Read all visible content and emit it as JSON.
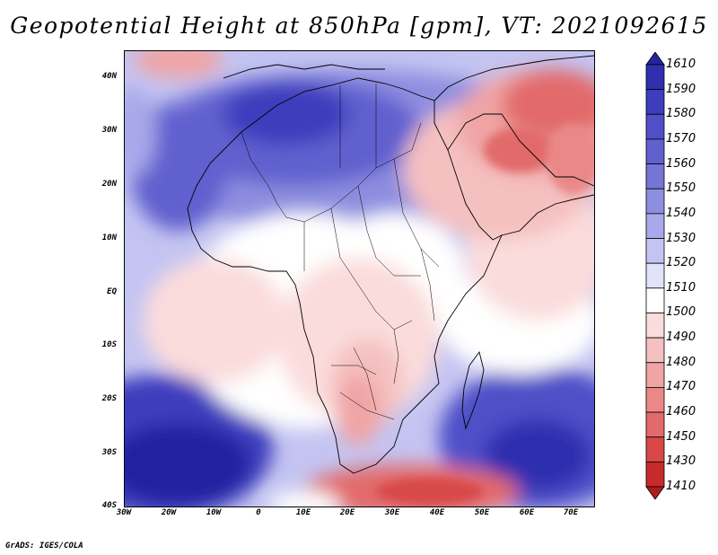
{
  "title": "Geopotential Height at 850hPa [gpm], VT: 2021092615",
  "credit": "GrADS: IGES/COLA",
  "map": {
    "type": "heatmap",
    "variable": "Geopotential Height",
    "level": "850hPa",
    "units": "gpm",
    "valid_time": "2021092615",
    "lat_labels": [
      "40N",
      "30N",
      "20N",
      "10N",
      "EQ",
      "10S",
      "20S",
      "30S",
      "40S"
    ],
    "lon_labels": [
      "30W",
      "20W",
      "10W",
      "0",
      "10E",
      "20E",
      "30E",
      "40E",
      "50E",
      "60E",
      "70E"
    ],
    "lat_range": [
      -40,
      45
    ],
    "lon_range": [
      -30,
      75
    ]
  },
  "colorbar": {
    "levels": [
      "1610",
      "1590",
      "1580",
      "1570",
      "1560",
      "1550",
      "1540",
      "1530",
      "1520",
      "1510",
      "1500",
      "1490",
      "1480",
      "1470",
      "1460",
      "1450",
      "1430",
      "1410"
    ],
    "colors": [
      "#2424a0",
      "#2f2fb0",
      "#3d3dbe",
      "#4f4fc8",
      "#6060cf",
      "#7575d6",
      "#8e8ee0",
      "#a8a8ea",
      "#c4c4f2",
      "#e2e2f8",
      "#ffffff",
      "#fbdcdc",
      "#f5c0c0",
      "#f0a4a4",
      "#ea8888",
      "#e26a6a",
      "#d84848",
      "#c62a2a",
      "#b01c1c"
    ]
  },
  "legend_colors": {
    "land_border": "#000000",
    "high": "#3131b4",
    "neutral": "#ffffff",
    "low": "#c83232"
  }
}
